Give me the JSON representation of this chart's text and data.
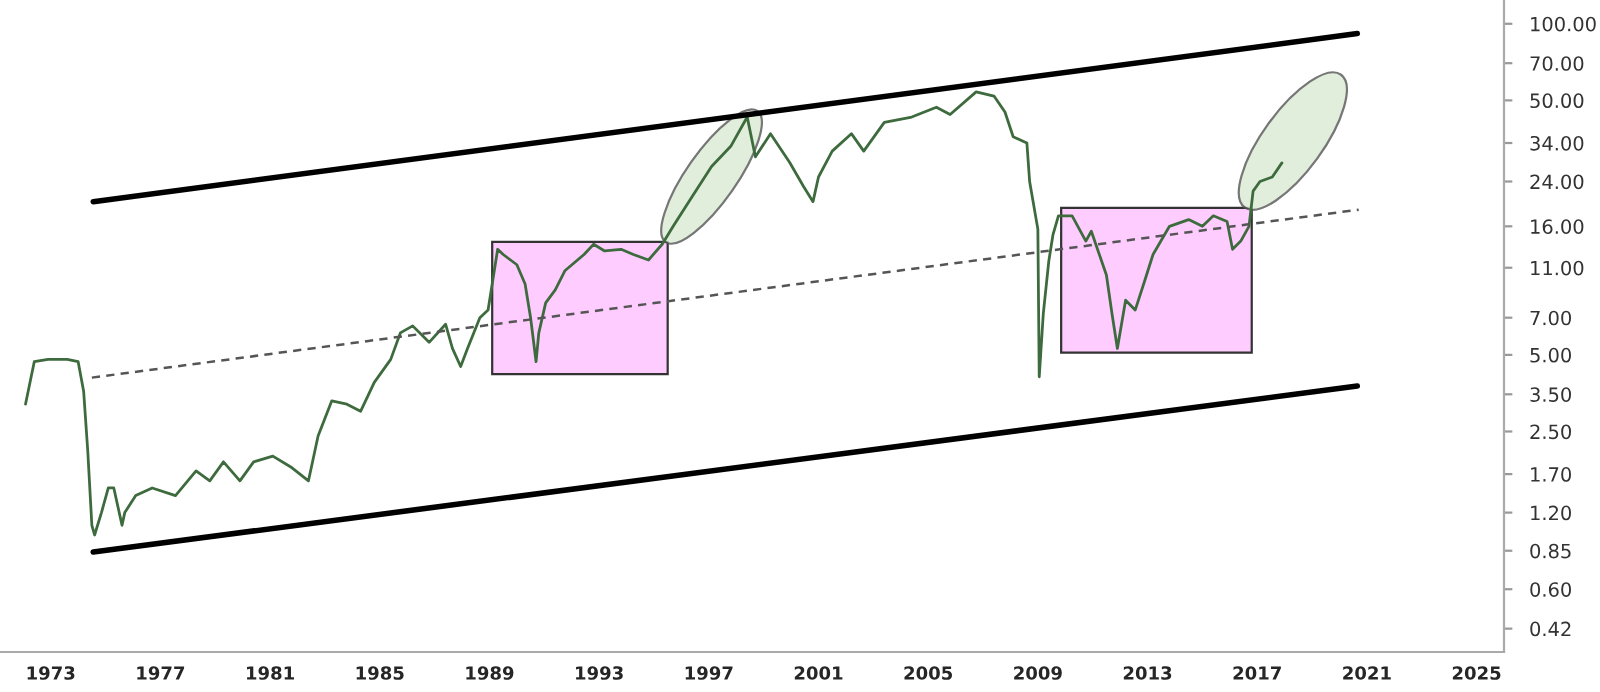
{
  "chart_data": {
    "type": "line",
    "log": "y",
    "grid": false,
    "legend": false,
    "marker": "none",
    "xlim": [
      1971.15,
      2026.0
    ],
    "ylim": [
      0.34,
      124
    ],
    "xticks": [
      1973,
      1977,
      1981,
      1985,
      1989,
      1993,
      1997,
      2001,
      2005,
      2009,
      2013,
      2017,
      2021,
      2025
    ],
    "yticks": [
      {
        "value": 0.42,
        "label": "0.42"
      },
      {
        "value": 0.6,
        "label": "0.60"
      },
      {
        "value": 0.85,
        "label": "0.85"
      },
      {
        "value": 1.2,
        "label": "1.20"
      },
      {
        "value": 1.7,
        "label": "1.70"
      },
      {
        "value": 2.5,
        "label": "2.50"
      },
      {
        "value": 3.5,
        "label": "3.50"
      },
      {
        "value": 5,
        "label": "5.00"
      },
      {
        "value": 7,
        "label": "7.00"
      },
      {
        "value": 11,
        "label": "11.00"
      },
      {
        "value": 16,
        "label": "16.00"
      },
      {
        "value": 24,
        "label": "24.00"
      },
      {
        "value": 34,
        "label": "34.00"
      },
      {
        "value": 50,
        "label": "50.00"
      },
      {
        "value": 70,
        "label": "70.00"
      },
      {
        "value": 100,
        "label": "100.00"
      }
    ],
    "series": [
      {
        "color": "#3d6b3d",
        "line_style": "solid",
        "x": [
          1972.08,
          1972.4,
          1972.9,
          1973.6,
          1974.0,
          1974.2,
          1974.35,
          1974.5,
          1974.6,
          1974.85,
          1975.1,
          1975.3,
          1975.6,
          1975.7,
          1976.1,
          1976.7,
          1977.55,
          1978.3,
          1978.8,
          1979.3,
          1979.9,
          1980.4,
          1981.1,
          1981.8,
          1982.4,
          1982.75,
          1983.25,
          1983.8,
          1984.3,
          1984.8,
          1985.4,
          1985.75,
          1986.2,
          1986.8,
          1987.4,
          1987.65,
          1987.95,
          1988.2,
          1988.65,
          1988.95,
          1989.3,
          1989.5,
          1990.0,
          1990.3,
          1990.5,
          1990.7,
          1990.8,
          1991.05,
          1991.4,
          1991.75,
          1992.45,
          1992.8,
          1993.2,
          1993.8,
          1994.25,
          1994.8,
          1995.3,
          1995.7,
          1996.4,
          1997.1,
          1997.8,
          1998.4,
          1998.7,
          1999.25,
          1999.95,
          2000.45,
          2000.8,
          2001.0,
          2001.5,
          2002.2,
          2002.65,
          2003.4,
          2004.4,
          2005.3,
          2005.8,
          2006.75,
          2007.4,
          2007.8,
          2008.1,
          2008.6,
          2008.7,
          2009.0,
          2009.05,
          2009.2,
          2009.4,
          2009.55,
          2009.75,
          2010.25,
          2010.75,
          2010.95,
          2011.5,
          2011.7,
          2011.9,
          2012.2,
          2012.55,
          2012.9,
          2013.2,
          2013.8,
          2014.5,
          2015.0,
          2015.4,
          2015.9,
          2016.1,
          2016.4,
          2016.7,
          2016.85,
          2017.1,
          2017.55,
          2017.9
        ],
        "values": [
          3.2,
          4.7,
          4.8,
          4.8,
          4.7,
          3.6,
          2.1,
          1.07,
          0.98,
          1.2,
          1.5,
          1.5,
          1.07,
          1.2,
          1.4,
          1.5,
          1.4,
          1.75,
          1.6,
          1.9,
          1.6,
          1.9,
          2.0,
          1.8,
          1.6,
          2.4,
          3.3,
          3.2,
          3.0,
          3.9,
          4.8,
          6.1,
          6.5,
          5.6,
          6.6,
          5.3,
          4.5,
          5.3,
          7.0,
          7.5,
          13,
          12.4,
          11.3,
          9.5,
          7.0,
          4.7,
          6.1,
          8.0,
          9.0,
          10.7,
          12.4,
          13.6,
          12.8,
          13,
          12.4,
          11.8,
          13.6,
          16,
          21,
          27.5,
          33,
          43,
          30,
          37,
          28.5,
          23,
          20,
          25,
          31.6,
          37,
          31.6,
          41,
          43,
          47,
          44,
          54,
          52,
          45,
          36,
          34,
          24,
          15.6,
          4.1,
          7.3,
          11.7,
          14.8,
          17.6,
          17.6,
          14,
          15.3,
          10.3,
          7.3,
          5.3,
          8.2,
          7.5,
          9.8,
          12.4,
          16,
          17,
          16,
          17.6,
          16.7,
          13,
          14,
          16,
          22,
          24,
          25,
          28.4
        ]
      },
      {
        "type": "line",
        "color": "#000000",
        "line_style": "solid",
        "x": [
          1974.55,
          2020.65
        ],
        "values": [
          20,
          91.5
        ]
      },
      {
        "type": "line",
        "color": "#000000",
        "line_style": "solid",
        "x": [
          1974.55,
          2020.65
        ],
        "values": [
          0.84,
          3.77
        ]
      },
      {
        "type": "line",
        "color": "#555555",
        "line_style": "dashed",
        "x": [
          1974.5,
          2020.7
        ],
        "values": [
          4.07,
          18.6
        ]
      }
    ]
  }
}
